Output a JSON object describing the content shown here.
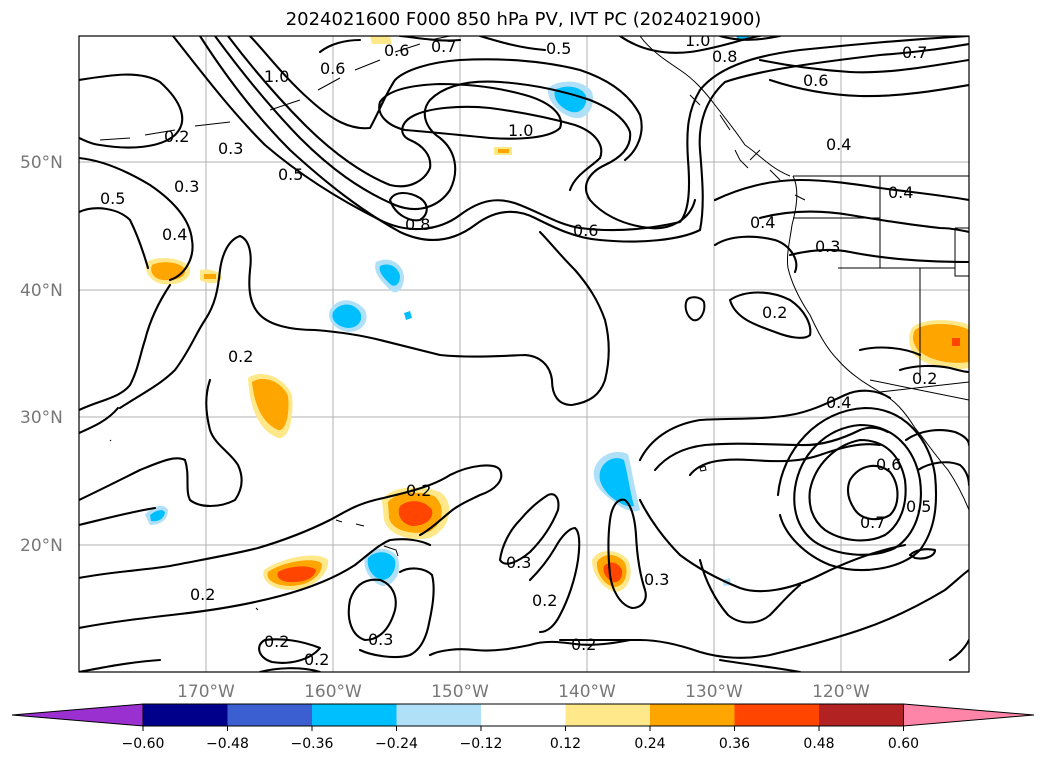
{
  "title": "2024021600 F000 850 hPa PV, IVT PC (2024021900)",
  "lat_labels": [
    "50°N",
    "40°N",
    "30°N",
    "20°N"
  ],
  "lon_labels": [
    "170°W",
    "160°W",
    "150°W",
    "140°W",
    "130°W",
    "120°W"
  ],
  "contour_labels": [
    "0.6",
    "0.7",
    "0.5",
    "1.0",
    "0.8",
    "0.6",
    "0.7",
    "1.0",
    "0.6",
    "0.2",
    "0.3",
    "0.5",
    "1.0",
    "0.8",
    "0.6",
    "0.4",
    "0.5",
    "0.3",
    "0.4",
    "0.4",
    "0.3",
    "0.4",
    "0.2",
    "0.2",
    "0.4",
    "0.2",
    "0.6",
    "0.5",
    "0.7",
    "0.2",
    "0.3",
    "0.3",
    "0.2",
    "0.2",
    "0.3",
    "0.2",
    "0.2",
    "0.2"
  ],
  "colorbar": {
    "ticks": [
      "−0.60",
      "−0.48",
      "−0.36",
      "−0.24",
      "−0.12",
      "0.12",
      "0.24",
      "0.36",
      "0.48",
      "0.60"
    ],
    "colors": [
      "#9b30d0",
      "#00008b",
      "#3b5fd0",
      "#00bfff",
      "#b0e0f8",
      "#ffffff",
      "#ffe88a",
      "#ffa500",
      "#ff4500",
      "#b22222",
      "#ff85a8"
    ]
  }
}
